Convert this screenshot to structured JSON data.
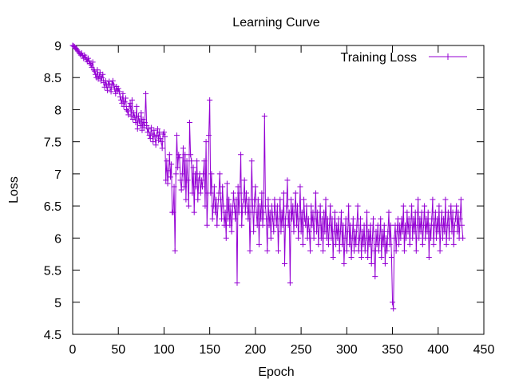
{
  "chart_data": {
    "type": "line",
    "title": "Learning Curve",
    "xlabel": "Epoch",
    "ylabel": "Loss",
    "xlim": [
      0,
      450
    ],
    "ylim": [
      4.5,
      9
    ],
    "x_ticks": [
      "0",
      "50",
      "100",
      "150",
      "200",
      "250",
      "300",
      "350",
      "400",
      "450"
    ],
    "y_ticks": [
      "4.5",
      "5",
      "5.5",
      "6",
      "6.5",
      "7",
      "7.5",
      "8",
      "8.5",
      "9"
    ],
    "grid": false,
    "legend_position": "top-right",
    "marker": "plus",
    "series": [
      {
        "name": "Training Loss",
        "color": "#9400d3",
        "x_start": 0,
        "x_step": 1,
        "y": [
          9.0,
          8.99,
          8.98,
          8.96,
          8.95,
          8.93,
          8.91,
          8.89,
          8.87,
          8.85,
          8.88,
          8.84,
          8.8,
          8.85,
          8.82,
          8.78,
          8.75,
          8.8,
          8.76,
          8.72,
          8.7,
          8.66,
          8.74,
          8.62,
          8.6,
          8.55,
          8.5,
          8.62,
          8.48,
          8.52,
          8.58,
          8.45,
          8.5,
          8.55,
          8.42,
          8.35,
          8.45,
          8.38,
          8.3,
          8.4,
          8.44,
          8.35,
          8.28,
          8.4,
          8.45,
          8.38,
          8.32,
          8.25,
          8.36,
          8.3,
          8.33,
          8.28,
          8.2,
          8.15,
          8.1,
          8.25,
          8.05,
          8.12,
          8.18,
          8.0,
          7.98,
          7.92,
          8.05,
          8.1,
          7.9,
          8.15,
          7.85,
          7.95,
          7.88,
          7.8,
          8.05,
          7.7,
          7.9,
          7.82,
          7.75,
          7.95,
          7.68,
          7.85,
          7.72,
          7.8,
          8.25,
          7.75,
          7.65,
          7.7,
          7.6,
          7.55,
          7.72,
          7.62,
          7.5,
          7.68,
          7.58,
          7.45,
          7.6,
          7.7,
          7.52,
          7.65,
          7.55,
          7.5,
          7.4,
          7.62,
          7.65,
          7.58,
          6.9,
          7.2,
          6.85,
          7.05,
          7.3,
          6.95,
          7.15,
          6.4,
          6.4,
          6.8,
          5.8,
          7.0,
          7.6,
          7.1,
          7.3,
          7.25,
          6.9,
          6.75,
          7.0,
          7.4,
          6.8,
          7.3,
          6.6,
          7.2,
          6.9,
          6.5,
          7.8,
          7.3,
          7.2,
          6.7,
          7.1,
          6.4,
          7.0,
          6.8,
          7.2,
          6.6,
          6.9,
          7.0,
          6.7,
          6.9,
          6.8,
          7.0,
          7.2,
          6.5,
          7.5,
          6.2,
          6.7,
          7.6,
          8.15,
          6.7,
          7.0,
          6.3,
          6.5,
          6.8,
          6.4,
          6.6,
          6.2,
          6.5,
          6.7,
          7.0,
          6.6,
          6.3,
          6.8,
          6.5,
          6.2,
          6.4,
          6.0,
          6.85,
          6.3,
          6.6,
          6.2,
          6.5,
          6.1,
          6.4,
          6.7,
          6.5,
          6.3,
          6.6,
          5.3,
          6.8,
          6.4,
          6.7,
          7.3,
          6.2,
          6.5,
          6.6,
          6.9,
          6.4,
          6.7,
          6.5,
          6.3,
          6.6,
          5.8,
          6.4,
          7.2,
          6.5,
          6.1,
          6.6,
          6.8,
          6.4,
          6.2,
          6.6,
          5.9,
          6.5,
          6.3,
          6.7,
          6.2,
          6.4,
          7.9,
          6.5,
          6.3,
          5.8,
          6.6,
          6.2,
          6.4,
          6.0,
          6.5,
          6.3,
          6.1,
          6.6,
          6.4,
          6.2,
          6.5,
          5.8,
          6.3,
          6.6,
          6.1,
          6.4,
          6.2,
          6.7,
          5.6,
          6.3,
          6.5,
          6.9,
          6.2,
          6.4,
          5.3,
          6.6,
          6.3,
          6.5,
          6.1,
          6.4,
          6.7,
          6.2,
          6.5,
          6.0,
          6.3,
          6.8,
          6.1,
          6.4,
          5.9,
          6.6,
          6.3,
          6.2,
          6.5,
          6.0,
          6.3,
          6.1,
          5.8,
          6.5,
          6.2,
          6.4,
          6.0,
          6.3,
          6.7,
          6.1,
          6.4,
          5.9,
          6.2,
          6.5,
          6.0,
          6.3,
          5.8,
          6.4,
          6.1,
          6.6,
          6.0,
          6.3,
          5.9,
          6.2,
          6.5,
          6.0,
          6.3,
          5.7,
          6.1,
          6.4,
          5.9,
          6.2,
          6.0,
          6.3,
          5.8,
          6.1,
          6.4,
          5.9,
          6.2,
          5.6,
          6.0,
          6.3,
          5.8,
          6.1,
          6.5,
          5.9,
          6.2,
          5.7,
          6.0,
          6.3,
          5.8,
          6.1,
          5.9,
          6.2,
          6.5,
          5.8,
          6.0,
          6.3,
          5.7,
          6.1,
          5.9,
          6.2,
          5.8,
          6.0,
          6.4,
          5.7,
          6.1,
          5.9,
          6.2,
          5.6,
          6.0,
          6.3,
          5.8,
          5.4,
          6.1,
          5.9,
          6.2,
          5.8,
          6.0,
          6.3,
          5.7,
          6.1,
          5.9,
          6.2,
          5.6,
          6.0,
          5.8,
          6.1,
          6.4,
          5.9,
          6.2,
          5.7,
          5.0,
          4.9,
          6.0,
          6.2,
          5.8,
          6.1,
          6.3,
          5.9,
          6.2,
          6.0,
          6.3,
          6.1,
          6.5,
          5.8,
          6.2,
          6.0,
          6.4,
          6.1,
          6.3,
          5.9,
          6.2,
          6.5,
          6.0,
          6.3,
          6.1,
          6.4,
          5.8,
          6.2,
          6.6,
          6.0,
          6.3,
          6.1,
          6.4,
          5.9,
          6.2,
          6.5,
          6.0,
          6.3,
          6.1,
          6.4,
          5.7,
          6.2,
          6.0,
          6.3,
          6.6,
          5.9,
          6.2,
          6.4,
          6.0,
          6.3,
          6.1,
          6.5,
          5.8,
          6.2,
          6.4,
          6.0,
          6.3,
          6.1,
          6.6,
          5.9,
          6.2,
          6.4,
          6.0,
          6.3,
          6.5,
          6.1,
          6.4,
          5.9,
          6.2,
          6.3,
          6.5,
          6.1,
          6.4,
          6.0,
          6.3,
          6.6,
          6.2,
          6.0
        ]
      }
    ]
  }
}
